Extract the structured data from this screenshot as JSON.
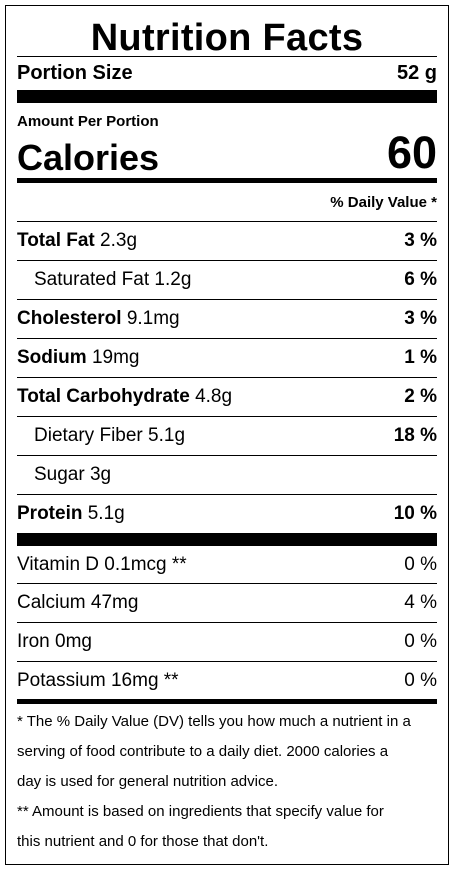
{
  "title": "Nutrition Facts",
  "portion": {
    "label": "Portion Size",
    "value": "52 g"
  },
  "amount_per_portion": "Amount Per Portion",
  "calories": {
    "label": "Calories",
    "value": "60"
  },
  "daily_value_header": "% Daily Value *",
  "nutrients": [
    {
      "name": "Total Fat",
      "amount": "2.3g",
      "dv": "3 %"
    },
    {
      "name": "Saturated Fat",
      "amount": "1.2g",
      "dv": "6 %"
    },
    {
      "name": "Cholesterol",
      "amount": "9.1mg",
      "dv": "3 %"
    },
    {
      "name": "Sodium",
      "amount": "19mg",
      "dv": "1 %"
    },
    {
      "name": "Total Carbohydrate",
      "amount": "4.8g",
      "dv": "2 %"
    },
    {
      "name": "Dietary Fiber",
      "amount": "5.1g",
      "dv": "18 %"
    },
    {
      "name": "Sugar",
      "amount": "3g",
      "dv": ""
    },
    {
      "name": "Protein",
      "amount": "5.1g",
      "dv": "10 %"
    }
  ],
  "vitamins": [
    {
      "name": "Vitamin D",
      "amount": "0.1mcg **",
      "dv": "0 %"
    },
    {
      "name": "Calcium",
      "amount": "47mg",
      "dv": "4 %"
    },
    {
      "name": "Iron",
      "amount": "0mg",
      "dv": "0 %"
    },
    {
      "name": "Potassium",
      "amount": "16mg **",
      "dv": "0 %"
    }
  ],
  "footnote": {
    "line1": "* The % Daily Value (DV) tells you how much a nutrient in a",
    "line2": "serving of food contribute to a daily diet. 2000 calories a",
    "line3": "day is used for general nutrition advice.",
    "line4": "** Amount is based on ingredients that specify value for",
    "line5": "this nutrient and 0 for those that don't."
  }
}
